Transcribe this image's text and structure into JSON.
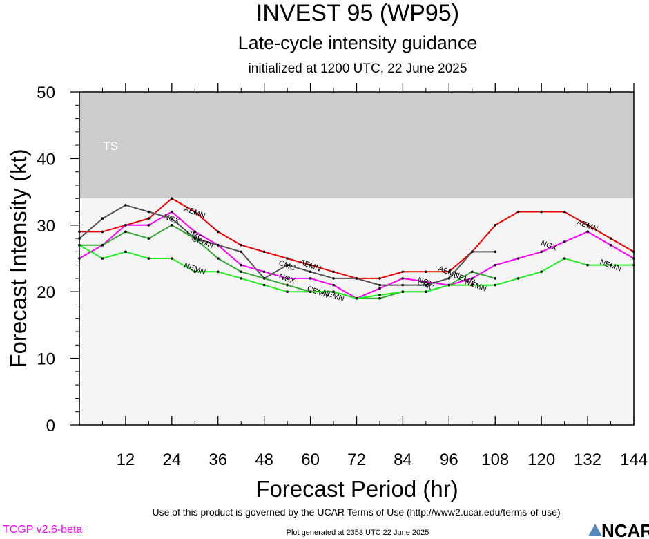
{
  "header": {
    "title": "INVEST 95 (WP95)",
    "subtitle": "Late-cycle intensity guidance",
    "initialized": "initialized at 1200 UTC, 22 June 2025"
  },
  "footer": {
    "terms": "Use of this product is governed by the UCAR Terms of Use (http://www2.ucar.edu/terms-of-use)",
    "generated": "Plot generated at 2353 UTC   22 June 2025",
    "version": "TCGP v2.6-beta",
    "logo": "NCAR"
  },
  "chart_data": {
    "type": "line",
    "title": "INVEST 95 (WP95)",
    "xlabel": "Forecast Period (hr)",
    "ylabel": "Forecast Intensity (kt)",
    "xlim": [
      0,
      144
    ],
    "ylim": [
      0,
      50
    ],
    "xticks": [
      12,
      24,
      36,
      48,
      60,
      72,
      84,
      96,
      108,
      120,
      132,
      144
    ],
    "yticks": [
      0,
      10,
      20,
      30,
      40,
      50
    ],
    "bands": [
      {
        "label": "TS",
        "from": 34,
        "to": 50,
        "color": "#cccccc"
      },
      {
        "label": "",
        "from": 0,
        "to": 34,
        "color": "#f5f5f5"
      }
    ],
    "grid": false,
    "series": [
      {
        "name": "AEMN",
        "color": "#ee0000",
        "x": [
          0,
          6,
          12,
          18,
          24,
          30,
          36,
          42,
          48,
          54,
          60,
          66,
          72,
          78,
          84,
          90,
          96,
          102,
          108,
          114,
          120,
          126,
          132,
          138,
          144
        ],
        "y": [
          29,
          29,
          30,
          31,
          34,
          32,
          29,
          27,
          26,
          25,
          24,
          23,
          22,
          22,
          23,
          23,
          23,
          26,
          30,
          32,
          32,
          32,
          30,
          28,
          26
        ],
        "labels": [
          {
            "x": 30,
            "y": 32,
            "text": "AEMN"
          },
          {
            "x": 60,
            "y": 24,
            "text": "AEMN"
          },
          {
            "x": 96,
            "y": 23,
            "text": "AEMN"
          },
          {
            "x": 132,
            "y": 30,
            "text": "AEMN"
          }
        ]
      },
      {
        "name": "NGX",
        "color": "#ff00ff",
        "x": [
          0,
          6,
          12,
          18,
          24,
          30,
          36,
          42,
          48,
          54,
          60,
          66,
          72,
          78,
          84,
          90,
          96,
          102,
          108,
          114,
          120,
          126,
          132,
          138,
          144
        ],
        "y": [
          25,
          27,
          30,
          30,
          32,
          29,
          27,
          24,
          23,
          22,
          22,
          21,
          19,
          20.5,
          22,
          21.5,
          21,
          22,
          24,
          25,
          26,
          27.5,
          29,
          27,
          25
        ],
        "labels": [
          {
            "x": 24,
            "y": 31,
            "text": "NGX"
          },
          {
            "x": 54,
            "y": 22,
            "text": "NGX"
          },
          {
            "x": 90,
            "y": 21.5,
            "text": "NGX"
          },
          {
            "x": 122,
            "y": 27,
            "text": "NGX"
          }
        ]
      },
      {
        "name": "CMC",
        "color": "#555555",
        "x": [
          0,
          6,
          12,
          18,
          24,
          30,
          36,
          42,
          48,
          54,
          60,
          66,
          72,
          78,
          84,
          90,
          96,
          102,
          108
        ],
        "y": [
          28,
          31,
          33,
          32,
          31,
          28,
          27,
          26,
          22,
          24,
          23,
          22,
          22,
          21,
          21,
          21,
          22,
          26,
          26
        ],
        "labels": [
          {
            "x": 30,
            "y": 28.5,
            "text": "CMC"
          },
          {
            "x": 54,
            "y": 24,
            "text": "CMC"
          },
          {
            "x": 90,
            "y": 21,
            "text": "CMC"
          }
        ]
      },
      {
        "name": "CEMN",
        "color": "#33aa33",
        "x": [
          0,
          6,
          12,
          18,
          24,
          30,
          36,
          42,
          48,
          54,
          60,
          66,
          72,
          78,
          84,
          90,
          96,
          102,
          108
        ],
        "y": [
          27,
          27,
          29,
          28,
          30,
          28,
          25,
          23,
          22,
          21,
          20,
          20,
          19,
          19,
          20,
          20,
          21,
          23,
          22
        ],
        "labels": [
          {
            "x": 32,
            "y": 27.5,
            "text": "CEMN"
          },
          {
            "x": 62,
            "y": 20,
            "text": "CEMN"
          },
          {
            "x": 100,
            "y": 22,
            "text": "CEMN"
          }
        ]
      },
      {
        "name": "NEMN",
        "color": "#22ee22",
        "x": [
          0,
          6,
          12,
          18,
          24,
          30,
          36,
          42,
          48,
          54,
          60,
          66,
          72,
          78,
          84,
          90,
          96,
          102,
          108,
          114,
          120,
          126,
          132,
          138,
          144
        ],
        "y": [
          27,
          25,
          26,
          25,
          25,
          23,
          23,
          22,
          21,
          20,
          20,
          20,
          19,
          19.5,
          20,
          20,
          21,
          21,
          21,
          22,
          23,
          25,
          24,
          24,
          24
        ],
        "labels": [
          {
            "x": 30,
            "y": 23.5,
            "text": "NEMN"
          },
          {
            "x": 66,
            "y": 19.5,
            "text": "NEMN"
          },
          {
            "x": 103,
            "y": 21,
            "text": "NEMN"
          },
          {
            "x": 138,
            "y": 24,
            "text": "NEMN"
          }
        ]
      }
    ]
  }
}
